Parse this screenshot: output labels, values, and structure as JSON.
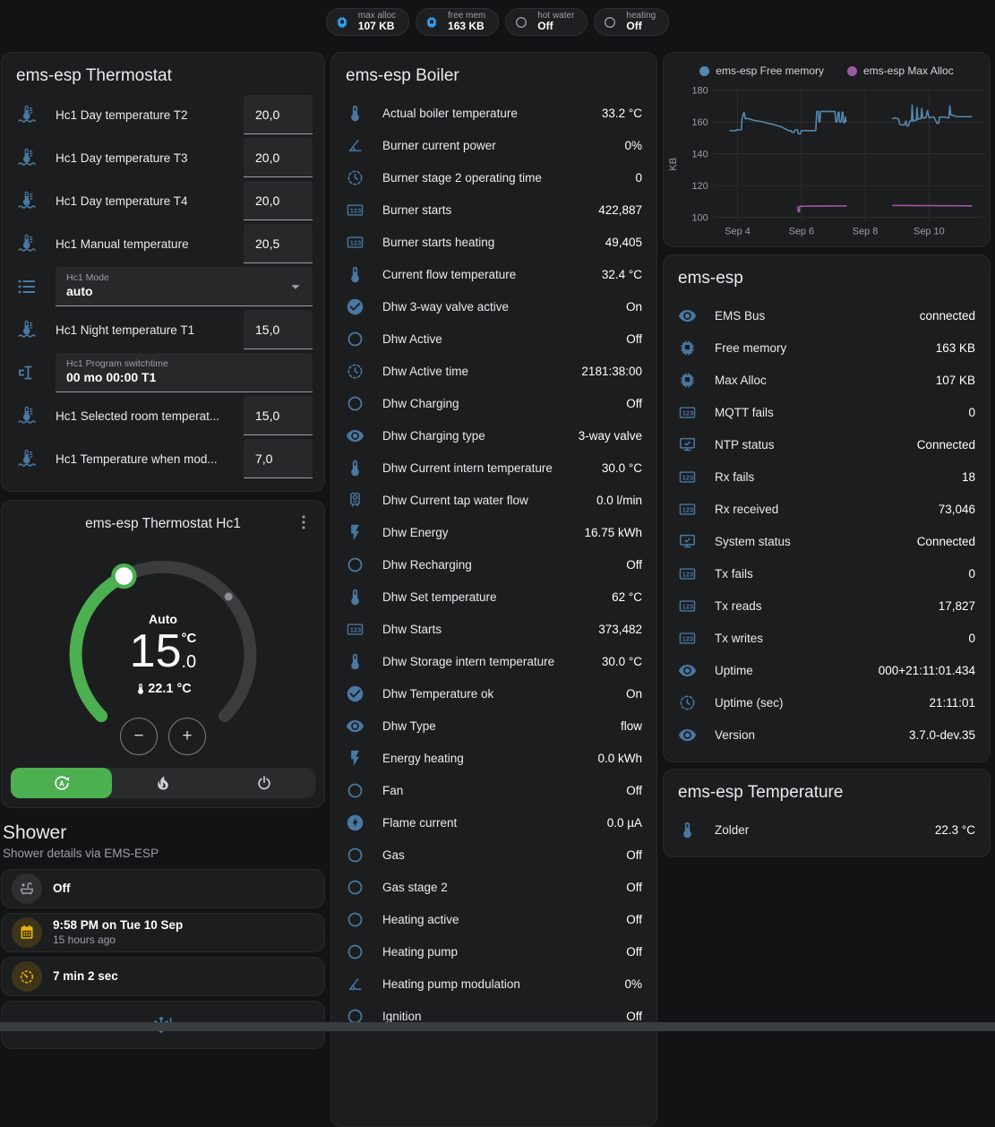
{
  "header": {
    "badges": [
      {
        "icon": "memory",
        "color": "blue",
        "label": "max alloc",
        "value": "107 KB"
      },
      {
        "icon": "memory",
        "color": "blue",
        "label": "free mem",
        "value": "163 KB"
      },
      {
        "icon": "circle",
        "color": "grey",
        "label": "hot water",
        "value": "Off"
      },
      {
        "icon": "circle",
        "color": "grey",
        "label": "heating",
        "value": "Off"
      }
    ]
  },
  "thermostat": {
    "title": "ems-esp Thermostat",
    "rows": [
      {
        "type": "number",
        "icon": "coolant-thermometer",
        "label": "Hc1 Day temperature T2",
        "value": "20,0"
      },
      {
        "type": "number",
        "icon": "coolant-thermometer",
        "label": "Hc1 Day temperature T3",
        "value": "20,0"
      },
      {
        "type": "number",
        "icon": "coolant-thermometer",
        "label": "Hc1 Day temperature T4",
        "value": "20,0"
      },
      {
        "type": "number",
        "icon": "coolant-thermometer",
        "label": "Hc1 Manual temperature",
        "value": "20,5"
      },
      {
        "type": "select",
        "icon": "format-list-bulleted",
        "label": "Hc1 Mode",
        "value": "auto"
      },
      {
        "type": "number",
        "icon": "coolant-thermometer",
        "label": "Hc1 Night temperature T1",
        "value": "15,0"
      },
      {
        "type": "textfield",
        "icon": "pipe-valve",
        "label": "Hc1 Program switchtime",
        "value": "00 mo 00:00 T1"
      },
      {
        "type": "number",
        "icon": "coolant-thermometer",
        "label": "Hc1 Selected room temperat...",
        "value": "15,0"
      },
      {
        "type": "number",
        "icon": "coolant-thermometer",
        "label": "Hc1 Temperature when mod...",
        "value": "7,0"
      }
    ]
  },
  "hc1": {
    "title": "ems-esp Thermostat Hc1",
    "mode_label": "Auto",
    "temp_int": "15",
    "temp_unit": "°C",
    "temp_dec": ".0",
    "current_temp": "22.1 °C",
    "minus_label": "−",
    "plus_label": "+",
    "modes": [
      {
        "icon": "auto-mode",
        "state": "active"
      },
      {
        "icon": "fire",
        "state": ""
      },
      {
        "icon": "power",
        "state": ""
      }
    ],
    "accent_green": "#4caf50"
  },
  "shower": {
    "title": "Shower",
    "subtitle": "Shower details via EMS-ESP",
    "items": [
      {
        "icon": "bathtub",
        "style": "grey",
        "primary": "Off",
        "secondary": ""
      },
      {
        "icon": "calendar",
        "style": "amber",
        "primary": "9:58 PM on Tue 10 Sep",
        "secondary": "15 hours ago"
      },
      {
        "icon": "timer",
        "style": "amber",
        "primary": "7 min 2 sec",
        "secondary": ""
      }
    ],
    "alert_icon": "snowflake-alert"
  },
  "boiler": {
    "title": "ems-esp Boiler",
    "rows": [
      {
        "icon": "thermometer",
        "label": "Actual boiler temperature",
        "value": "33.2 °C"
      },
      {
        "icon": "angle-acute",
        "label": "Burner current power",
        "value": "0%"
      },
      {
        "icon": "clock-dashed",
        "label": "Burner stage 2 operating time",
        "value": "0"
      },
      {
        "icon": "counter",
        "label": "Burner starts",
        "value": "422,887"
      },
      {
        "icon": "counter",
        "label": "Burner starts heating",
        "value": "49,405"
      },
      {
        "icon": "thermometer",
        "label": "Current flow temperature",
        "value": "32.4 °C"
      },
      {
        "icon": "check-circle",
        "label": "Dhw 3-way valve active",
        "value": "On"
      },
      {
        "icon": "circle",
        "label": "Dhw Active",
        "value": "Off"
      },
      {
        "icon": "clock-dashed",
        "label": "Dhw Active time",
        "value": "2181:38:00"
      },
      {
        "icon": "circle",
        "label": "Dhw Charging",
        "value": "Off"
      },
      {
        "icon": "eye",
        "label": "Dhw Charging type",
        "value": "3-way valve"
      },
      {
        "icon": "thermometer",
        "label": "Dhw Current intern temperature",
        "value": "30.0 °C"
      },
      {
        "icon": "water-boiler",
        "label": "Dhw Current tap water flow",
        "value": "0.0 l/min"
      },
      {
        "icon": "flash",
        "label": "Dhw Energy",
        "value": "16.75 kWh"
      },
      {
        "icon": "circle",
        "label": "Dhw Recharging",
        "value": "Off"
      },
      {
        "icon": "thermometer",
        "label": "Dhw Set temperature",
        "value": "62 °C"
      },
      {
        "icon": "counter",
        "label": "Dhw Starts",
        "value": "373,482"
      },
      {
        "icon": "thermometer",
        "label": "Dhw Storage intern temperature",
        "value": "30.0 °C"
      },
      {
        "icon": "check-circle",
        "label": "Dhw Temperature ok",
        "value": "On"
      },
      {
        "icon": "eye",
        "label": "Dhw Type",
        "value": "flow"
      },
      {
        "icon": "flash",
        "label": "Energy heating",
        "value": "0.0 kWh"
      },
      {
        "icon": "circle",
        "label": "Fan",
        "value": "Off"
      },
      {
        "icon": "flash-circle",
        "label": "Flame current",
        "value": "0.0 µA"
      },
      {
        "icon": "circle",
        "label": "Gas",
        "value": "Off"
      },
      {
        "icon": "circle",
        "label": "Gas stage 2",
        "value": "Off"
      },
      {
        "icon": "circle",
        "label": "Heating active",
        "value": "Off"
      },
      {
        "icon": "circle",
        "label": "Heating pump",
        "value": "Off"
      },
      {
        "icon": "angle-acute",
        "label": "Heating pump modulation",
        "value": "0%"
      },
      {
        "icon": "circle",
        "label": "Ignition",
        "value": "Off"
      }
    ]
  },
  "chart_data": {
    "type": "line",
    "title": "",
    "xlabel": "",
    "ylabel": "KB",
    "ylim": [
      100,
      180
    ],
    "grid": true,
    "legend_position": "top",
    "y_ticks": [
      180,
      160,
      140,
      120,
      100
    ],
    "x_ticks": [
      {
        "day": 4,
        "label": "Sep 4"
      },
      {
        "day": 6,
        "label": "Sep 6"
      },
      {
        "day": 8,
        "label": "Sep 8"
      },
      {
        "day": 10,
        "label": "Sep 10"
      }
    ],
    "series": [
      {
        "name": "ems-esp Free memory",
        "color": "#5588ad",
        "segments": [
          [
            [
              3.75,
              154.5
            ],
            [
              3.95,
              154.5
            ],
            [
              3.97,
              155
            ],
            [
              4.12,
              155
            ],
            [
              4.14,
              162
            ],
            [
              4.2,
              166
            ],
            [
              4.24,
              162
            ],
            [
              4.35,
              162
            ],
            [
              4.5,
              161
            ],
            [
              4.65,
              160.5
            ],
            [
              4.8,
              160
            ],
            [
              4.95,
              159
            ],
            [
              5.1,
              158.5
            ],
            [
              5.25,
              157.5
            ],
            [
              5.35,
              157
            ],
            [
              5.45,
              156
            ],
            [
              5.5,
              155.5
            ],
            [
              5.55,
              155
            ],
            [
              5.6,
              154.5
            ],
            [
              5.68,
              154.5
            ],
            [
              5.7,
              153.5
            ],
            [
              5.78,
              153.5
            ],
            [
              5.8,
              155
            ],
            [
              5.88,
              155
            ],
            [
              5.9,
              152.5
            ],
            [
              5.97,
              152.5
            ],
            [
              6.0,
              154.5
            ],
            [
              6.45,
              154.5
            ],
            [
              6.48,
              166.5
            ],
            [
              6.53,
              166.5
            ],
            [
              6.55,
              160
            ],
            [
              6.58,
              160
            ],
            [
              6.6,
              166.5
            ],
            [
              7.05,
              166.5
            ],
            [
              7.08,
              160
            ],
            [
              7.12,
              160
            ],
            [
              7.15,
              166
            ],
            [
              7.18,
              166
            ],
            [
              7.2,
              160
            ],
            [
              7.25,
              160
            ],
            [
              7.28,
              166
            ],
            [
              7.3,
              166
            ],
            [
              7.32,
              159.5
            ],
            [
              7.36,
              159.5
            ],
            [
              7.38,
              163
            ],
            [
              7.4,
              160
            ]
          ],
          [
            [
              8.85,
              162
            ],
            [
              8.95,
              162.5
            ],
            [
              9.02,
              162
            ],
            [
              9.05,
              161.5
            ],
            [
              9.08,
              158.5
            ],
            [
              9.15,
              158
            ],
            [
              9.22,
              158
            ],
            [
              9.28,
              160.5
            ],
            [
              9.3,
              157.5
            ],
            [
              9.35,
              157.5
            ],
            [
              9.4,
              160.5
            ],
            [
              9.45,
              160.5
            ],
            [
              9.47,
              170.5
            ],
            [
              9.5,
              160.5
            ],
            [
              9.55,
              161
            ],
            [
              9.6,
              161
            ],
            [
              9.62,
              169
            ],
            [
              9.65,
              161.5
            ],
            [
              9.7,
              162
            ],
            [
              9.75,
              162
            ],
            [
              9.77,
              168.5
            ],
            [
              9.8,
              162.5
            ],
            [
              9.9,
              162.5
            ],
            [
              9.95,
              167
            ],
            [
              10.0,
              162.5
            ],
            [
              10.1,
              163
            ],
            [
              10.15,
              163
            ],
            [
              10.25,
              159
            ],
            [
              10.3,
              159
            ],
            [
              10.33,
              163
            ],
            [
              10.5,
              163
            ],
            [
              10.55,
              162.5
            ],
            [
              10.62,
              162.5
            ],
            [
              10.65,
              170
            ],
            [
              10.68,
              164.5
            ],
            [
              10.75,
              164
            ],
            [
              10.85,
              163.3
            ],
            [
              11.35,
              163.2
            ]
          ]
        ]
      },
      {
        "name": "ems-esp Max Alloc",
        "color": "#9b59a5",
        "segments": [
          [
            [
              5.88,
              107
            ],
            [
              5.9,
              103.5
            ],
            [
              5.93,
              103.5
            ],
            [
              5.95,
              107
            ],
            [
              7.42,
              107.2
            ]
          ],
          [
            [
              8.85,
              107.5
            ],
            [
              11.35,
              107.2
            ]
          ]
        ]
      }
    ]
  },
  "emsesp": {
    "title": "ems-esp",
    "rows": [
      {
        "icon": "eye",
        "label": "EMS Bus",
        "value": "connected"
      },
      {
        "icon": "memory",
        "label": "Free memory",
        "value": "163 KB"
      },
      {
        "icon": "memory",
        "label": "Max Alloc",
        "value": "107 KB"
      },
      {
        "icon": "counter",
        "label": "MQTT fails",
        "value": "0"
      },
      {
        "icon": "monitor-check",
        "label": "NTP status",
        "value": "Connected"
      },
      {
        "icon": "counter",
        "label": "Rx fails",
        "value": "18"
      },
      {
        "icon": "counter",
        "label": "Rx received",
        "value": "73,046"
      },
      {
        "icon": "monitor-check",
        "label": "System status",
        "value": "Connected"
      },
      {
        "icon": "counter",
        "label": "Tx fails",
        "value": "0"
      },
      {
        "icon": "counter",
        "label": "Tx reads",
        "value": "17,827"
      },
      {
        "icon": "counter",
        "label": "Tx writes",
        "value": "0"
      },
      {
        "icon": "eye",
        "label": "Uptime",
        "value": "000+21:11:01.434"
      },
      {
        "icon": "clock-dashed",
        "label": "Uptime (sec)",
        "value": "21:11:01"
      },
      {
        "icon": "eye",
        "label": "Version",
        "value": "3.7.0-dev.35"
      }
    ]
  },
  "temperature": {
    "title": "ems-esp Temperature",
    "rows": [
      {
        "icon": "thermometer",
        "label": "Zolder",
        "value": "22.3 °C"
      }
    ]
  },
  "colors": {
    "icon_blue": "#4978a2",
    "badge_blue": "#34a2f4",
    "green": "#4caf50",
    "amber": "#eab308",
    "card_bg": "#1c1d1e"
  }
}
